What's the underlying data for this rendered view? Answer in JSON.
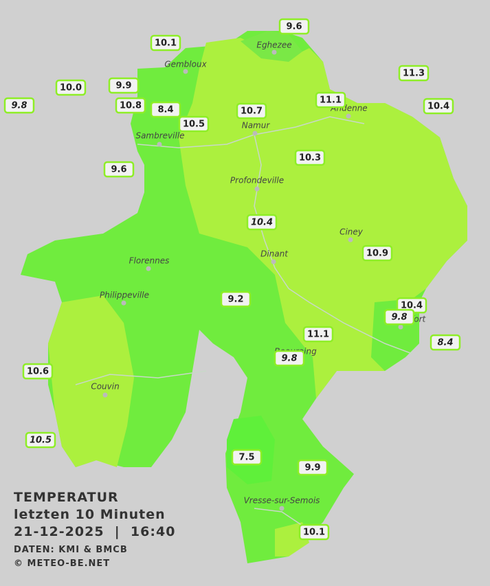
{
  "legend": {
    "title": "TEMPERATUR",
    "subtitle": "letzten 10 Minuten",
    "timestamp": "21-12-2025  |  16:40",
    "source": "DATEN: KMI & BMCB",
    "copyright": "© METEO-BE.NET"
  },
  "cities": [
    {
      "name": "Eghezee"
    },
    {
      "name": "Gembloux"
    },
    {
      "name": "Andenne"
    },
    {
      "name": "Namur"
    },
    {
      "name": "Sambreville"
    },
    {
      "name": "Profondeville"
    },
    {
      "name": "Ciney"
    },
    {
      "name": "Dinant"
    },
    {
      "name": "Florennes"
    },
    {
      "name": "Philippeville"
    },
    {
      "name": "Beauraing"
    },
    {
      "name": "Rochefort"
    },
    {
      "name": "Couvin"
    },
    {
      "name": "Vresse-sur-Semois"
    }
  ],
  "stations": [
    {
      "value": "9.6"
    },
    {
      "value": "10.1"
    },
    {
      "value": "11.3"
    },
    {
      "value": "10.0"
    },
    {
      "value": "9.9"
    },
    {
      "value": "9.8",
      "italic": true
    },
    {
      "value": "10.8"
    },
    {
      "value": "8.4"
    },
    {
      "value": "10.7"
    },
    {
      "value": "11.1"
    },
    {
      "value": "10.4"
    },
    {
      "value": "10.5"
    },
    {
      "value": "9.6"
    },
    {
      "value": "10.3"
    },
    {
      "value": "10.4",
      "italic": true
    },
    {
      "value": "10.9"
    },
    {
      "value": "9.2"
    },
    {
      "value": "10.4"
    },
    {
      "value": "9.8",
      "italic": true
    },
    {
      "value": "11.1"
    },
    {
      "value": "8.4",
      "italic": true
    },
    {
      "value": "9.8",
      "italic": true
    },
    {
      "value": "10.6"
    },
    {
      "value": "10.5",
      "italic": true
    },
    {
      "value": "7.5"
    },
    {
      "value": "9.9"
    },
    {
      "value": "10.1"
    }
  ]
}
